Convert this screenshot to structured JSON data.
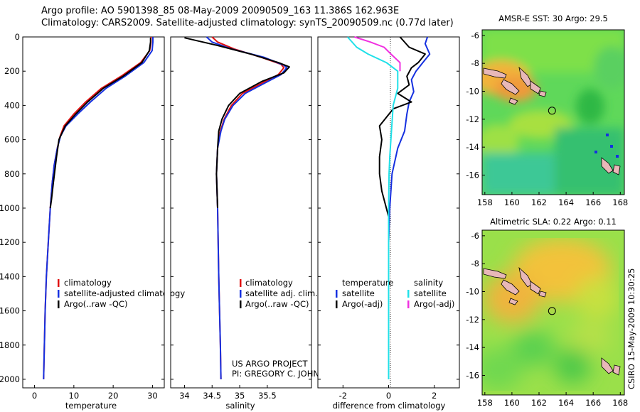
{
  "header": {
    "line1": "Argo profile: AO 5901398_85 08-May-2009 20090509_163 11.386S 162.963E",
    "line2": "Climatology: CARS2009. Satellite-adjusted climatology: synTS_20090509.nc (0.77d later)"
  },
  "footer_stamp": "CSIRO 15-May-2009 10:30:25",
  "project_credit": {
    "line1": "US ARGO PROJECT",
    "line2": "PI: GREGORY C. JOHNSON"
  },
  "colors": {
    "climatology": "#e01010",
    "satellite": "#1530e0",
    "argo": "#000000",
    "sal_satellite": "#20e0e8",
    "sal_argo": "#f030e0"
  },
  "chart_data": [
    {
      "id": "temperature",
      "type": "line",
      "xlabel": "temperature",
      "ylabel": "",
      "xlim": [
        -3,
        33
      ],
      "ylim": [
        2050,
        0
      ],
      "xticks": [
        0,
        10,
        20,
        30
      ],
      "yticks": [
        0,
        200,
        400,
        600,
        800,
        1000,
        1200,
        1400,
        1600,
        1800,
        2000
      ],
      "legend": [
        "climatology",
        "satellite-adjusted climatology",
        "Argo(..raw -QC)"
      ],
      "series": [
        {
          "name": "climatology",
          "color": "#e01010",
          "points": [
            [
              29.6,
              0
            ],
            [
              29.6,
              30
            ],
            [
              29.3,
              80
            ],
            [
              27,
              150
            ],
            [
              22,
              230
            ],
            [
              17,
              300
            ],
            [
              13,
              380
            ],
            [
              10,
              450
            ],
            [
              7.5,
              520
            ],
            [
              6.5,
              580
            ],
            [
              5.8,
              650
            ],
            [
              5,
              750
            ],
            [
              4.5,
              850
            ],
            [
              4,
              1000
            ],
            [
              3.5,
              1200
            ],
            [
              3,
              1400
            ],
            [
              2.7,
              1600
            ],
            [
              2.5,
              1800
            ],
            [
              2.3,
              2000
            ]
          ]
        },
        {
          "name": "satellite-adjusted climatology",
          "color": "#1530e0",
          "points": [
            [
              30.1,
              0
            ],
            [
              30.1,
              30
            ],
            [
              29.9,
              80
            ],
            [
              27.8,
              150
            ],
            [
              23,
              230
            ],
            [
              18.2,
              300
            ],
            [
              14.2,
              380
            ],
            [
              11,
              450
            ],
            [
              8,
              520
            ],
            [
              6.6,
              580
            ],
            [
              5.8,
              650
            ],
            [
              5,
              750
            ],
            [
              4.5,
              850
            ],
            [
              4,
              1000
            ],
            [
              3.5,
              1200
            ],
            [
              3,
              1400
            ],
            [
              2.7,
              1600
            ],
            [
              2.5,
              1800
            ],
            [
              2.3,
              2000
            ]
          ]
        },
        {
          "name": "Argo(..raw -QC)",
          "color": "#000000",
          "points": [
            [
              29.5,
              5
            ],
            [
              29.5,
              30
            ],
            [
              29.2,
              80
            ],
            [
              27.3,
              150
            ],
            [
              22.5,
              230
            ],
            [
              17.5,
              300
            ],
            [
              13.5,
              380
            ],
            [
              10.5,
              450
            ],
            [
              7.8,
              520
            ],
            [
              6.2,
              600
            ],
            [
              5.6,
              700
            ],
            [
              4.8,
              850
            ],
            [
              4.3,
              950
            ],
            [
              4,
              1000
            ]
          ]
        }
      ]
    },
    {
      "id": "salinity",
      "type": "line",
      "xlabel": "salinity",
      "ylabel": "",
      "xlim": [
        33.75,
        36.3
      ],
      "ylim": [
        2050,
        0
      ],
      "xticks": [
        34,
        34.5,
        35,
        35.5
      ],
      "legend": [
        "climatology",
        "satellite adj. clim.",
        "Argo(..raw -QC)"
      ],
      "series": [
        {
          "name": "climatology",
          "color": "#e01010",
          "points": [
            [
              34.5,
              0
            ],
            [
              34.6,
              30
            ],
            [
              34.9,
              70
            ],
            [
              35.4,
              120
            ],
            [
              35.75,
              160
            ],
            [
              35.8,
              180
            ],
            [
              35.7,
              220
            ],
            [
              35.4,
              270
            ],
            [
              35.05,
              330
            ],
            [
              34.85,
              400
            ],
            [
              34.72,
              480
            ],
            [
              34.65,
              550
            ],
            [
              34.6,
              650
            ],
            [
              34.58,
              800
            ],
            [
              34.6,
              1000
            ],
            [
              34.62,
              1400
            ],
            [
              34.65,
              1800
            ],
            [
              34.66,
              2000
            ]
          ]
        },
        {
          "name": "satellite adj. clim.",
          "color": "#1530e0",
          "points": [
            [
              34.4,
              0
            ],
            [
              34.5,
              30
            ],
            [
              34.85,
              70
            ],
            [
              35.45,
              120
            ],
            [
              35.8,
              165
            ],
            [
              35.85,
              180
            ],
            [
              35.75,
              220
            ],
            [
              35.45,
              270
            ],
            [
              35.1,
              330
            ],
            [
              34.88,
              400
            ],
            [
              34.73,
              480
            ],
            [
              34.66,
              550
            ],
            [
              34.6,
              650
            ],
            [
              34.58,
              800
            ],
            [
              34.6,
              1000
            ],
            [
              34.62,
              1400
            ],
            [
              34.65,
              1800
            ],
            [
              34.66,
              2000
            ]
          ]
        },
        {
          "name": "Argo(..raw -QC)",
          "color": "#000000",
          "points": [
            [
              34.0,
              5
            ],
            [
              34.2,
              20
            ],
            [
              34.6,
              50
            ],
            [
              35.2,
              100
            ],
            [
              35.7,
              150
            ],
            [
              35.9,
              175
            ],
            [
              35.8,
              210
            ],
            [
              35.4,
              260
            ],
            [
              35.0,
              330
            ],
            [
              34.8,
              400
            ],
            [
              34.68,
              480
            ],
            [
              34.62,
              550
            ],
            [
              34.6,
              650
            ],
            [
              34.58,
              800
            ],
            [
              34.6,
              1000
            ]
          ]
        }
      ]
    },
    {
      "id": "difference",
      "type": "line",
      "xlabel": "difference from climatology",
      "ylabel": "",
      "xlim": [
        -3.1,
        3.1
      ],
      "ylim": [
        2050,
        0
      ],
      "xticks": [
        -2,
        0,
        2
      ],
      "legend_groups": [
        {
          "title": "temperature",
          "items": [
            "satellite",
            "Argo(-adj)"
          ]
        },
        {
          "title": "salinity",
          "items": [
            "satellite",
            "Argo(-adj)"
          ]
        }
      ],
      "series": [
        {
          "name": "temperature satellite",
          "color": "#1530e0",
          "points": [
            [
              1.7,
              0
            ],
            [
              1.6,
              40
            ],
            [
              1.8,
              100
            ],
            [
              1.5,
              150
            ],
            [
              1.2,
              200
            ],
            [
              1,
              250
            ],
            [
              1.1,
              320
            ],
            [
              0.9,
              380
            ],
            [
              0.8,
              450
            ],
            [
              0.7,
              550
            ],
            [
              0.4,
              650
            ],
            [
              0.15,
              800
            ],
            [
              0.05,
              1000
            ],
            [
              0,
              1200
            ],
            [
              0,
              2000
            ]
          ]
        },
        {
          "name": "temperature Argo(-adj)",
          "color": "#000000",
          "points": [
            [
              0.5,
              0
            ],
            [
              0.9,
              60
            ],
            [
              1.6,
              100
            ],
            [
              1.3,
              150
            ],
            [
              1,
              180
            ],
            [
              0.8,
              230
            ],
            [
              0.9,
              280
            ],
            [
              0.4,
              330
            ],
            [
              1.0,
              380
            ],
            [
              0.2,
              420
            ],
            [
              -0.4,
              520
            ],
            [
              -0.3,
              600
            ],
            [
              -0.4,
              700
            ],
            [
              -0.4,
              800
            ],
            [
              -0.3,
              900
            ],
            [
              -0.1,
              1000
            ],
            [
              0,
              1050
            ]
          ]
        },
        {
          "name": "salinity satellite",
          "color": "#20e0e8",
          "points": [
            [
              -1.8,
              0
            ],
            [
              -1.4,
              60
            ],
            [
              -0.9,
              100
            ],
            [
              -0.1,
              150
            ],
            [
              0.4,
              200
            ],
            [
              0.4,
              300
            ],
            [
              0.2,
              400
            ],
            [
              0.15,
              500
            ],
            [
              0.1,
              600
            ],
            [
              0.05,
              700
            ],
            [
              0.02,
              800
            ],
            [
              0,
              1000
            ],
            [
              0,
              1500
            ],
            [
              0,
              2000
            ]
          ]
        },
        {
          "name": "salinity Argo(-adj)",
          "color": "#f030e0",
          "points": [
            [
              -1.5,
              0
            ],
            [
              -0.8,
              30
            ],
            [
              -0.2,
              60
            ],
            [
              0.1,
              100
            ],
            [
              0.5,
              150
            ],
            [
              0.5,
              200
            ]
          ]
        }
      ]
    },
    {
      "id": "sst_map",
      "type": "heatmap",
      "title": "AMSR-E SST: 30 Argo: 29.5",
      "xlim": [
        157.8,
        168.3
      ],
      "ylim": [
        -17.4,
        -5.6
      ],
      "xticks": [
        158,
        160,
        162,
        164,
        166,
        168
      ],
      "yticks": [
        -6,
        -8,
        -10,
        -12,
        -14,
        -16
      ],
      "float_position": [
        162.963,
        -11.386
      ]
    },
    {
      "id": "sla_map",
      "type": "heatmap",
      "title": "Altimetric SLA: 0.22 Argo: 0.11",
      "xlim": [
        157.8,
        168.3
      ],
      "ylim": [
        -17.4,
        -5.6
      ],
      "xticks": [
        158,
        160,
        162,
        164,
        166,
        168
      ],
      "yticks": [
        -6,
        -8,
        -10,
        -12,
        -14,
        -16
      ],
      "float_position": [
        162.963,
        -11.386
      ]
    }
  ]
}
